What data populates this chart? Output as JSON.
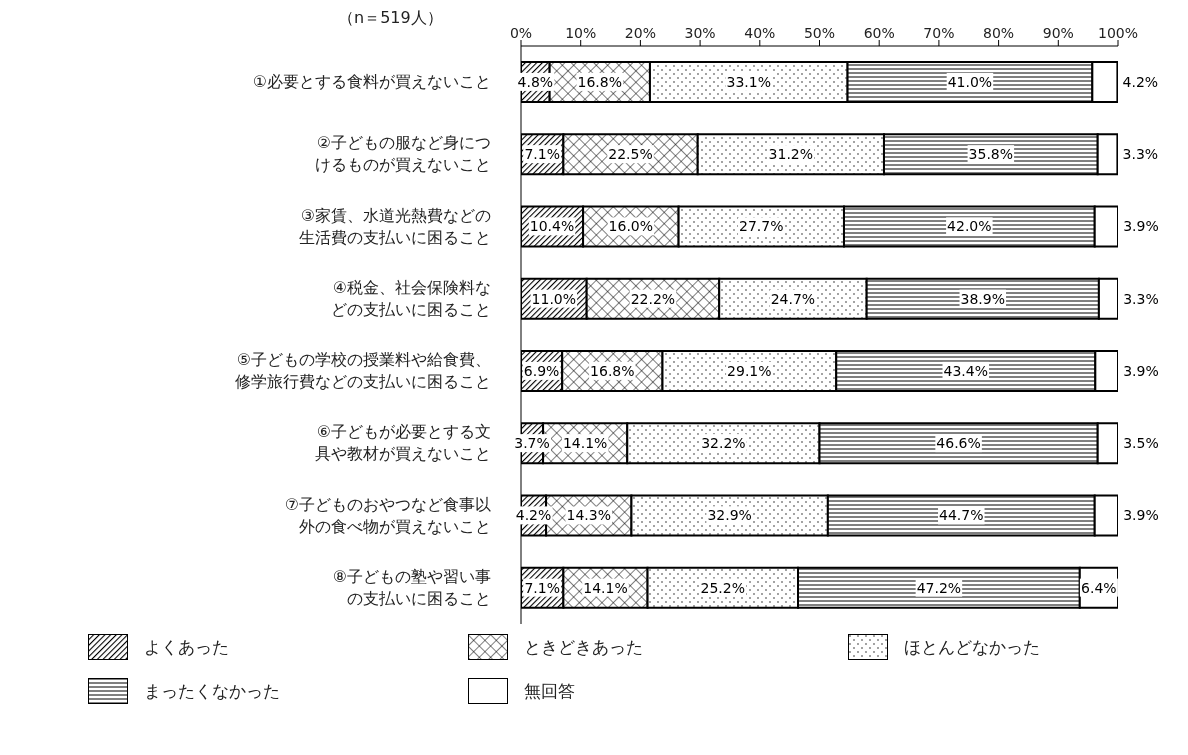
{
  "chart_data": {
    "type": "bar",
    "orientation": "horizontal",
    "stacked": true,
    "annotations": [
      "（n＝519人）"
    ],
    "categories": [
      "①必要とする食料が買えないこと",
      "②子どもの服など身につけるものが買えないこと",
      "③家賃、水道光熱費などの生活費の支払いに困ること",
      "④税金、社会保険料などの支払いに困ること",
      "⑤子どもの学校の授業料や給食費、修学旅行費などの支払いに困ること",
      "⑥子どもが必要とする文具や教材が買えないこと",
      "⑦子どものおやつなど食事以外の食べ物が買えないこと",
      "⑧子どもの塾や習い事の支払いに困ること"
    ],
    "series": [
      {
        "name": "よくあった",
        "color": "#000000",
        "values": [
          4.8,
          7.1,
          10.4,
          11.0,
          6.9,
          3.7,
          4.2,
          7.1
        ],
        "value_labels": [
          "4.8%",
          "7.1%",
          "10.4%",
          "11.0%",
          "6.9%",
          "3.7%",
          "4.2%",
          "7.1%"
        ]
      },
      {
        "name": "ときどきあった",
        "color": "#000000",
        "values": [
          16.8,
          22.5,
          16.0,
          22.2,
          16.8,
          14.1,
          14.3,
          14.1
        ],
        "value_labels": [
          "16.8%",
          "22.5%",
          "16.0%",
          "22.2%",
          "16.8%",
          "14.1%",
          "14.3%",
          "14.1%"
        ]
      },
      {
        "name": "ほとんどなかった",
        "color": "#000000",
        "values": [
          33.1,
          31.2,
          27.7,
          24.7,
          29.1,
          32.2,
          32.9,
          25.2
        ],
        "value_labels": [
          "33.1%",
          "31.2%",
          "27.7%",
          "24.7%",
          "29.1%",
          "32.2%",
          "32.9%",
          "25.2%"
        ]
      },
      {
        "name": "まったくなかった",
        "color": "#000000",
        "values": [
          41.0,
          35.8,
          42.0,
          38.9,
          43.4,
          46.6,
          44.7,
          47.2
        ],
        "value_labels": [
          "41.0%",
          "35.8%",
          "42.0%",
          "38.9%",
          "43.4%",
          "46.6%",
          "44.7%",
          "47.2%"
        ]
      },
      {
        "name": "無回答",
        "color": "#ffffff",
        "values": [
          4.2,
          3.3,
          3.9,
          3.3,
          3.9,
          3.5,
          3.9,
          6.4
        ],
        "value_labels": [
          "4.2%",
          "3.3%",
          "3.9%",
          "3.3%",
          "3.9%",
          "3.5%",
          "3.9%",
          "6.4%"
        ]
      }
    ],
    "xlim": [
      0,
      100
    ],
    "xticks": [
      {
        "value": 0,
        "label": "0%"
      },
      {
        "value": 10,
        "label": "10%"
      },
      {
        "value": 20,
        "label": "20%"
      },
      {
        "value": 30,
        "label": "30%"
      },
      {
        "value": 40,
        "label": "40%"
      },
      {
        "value": 50,
        "label": "50%"
      },
      {
        "value": 60,
        "label": "60%"
      },
      {
        "value": 70,
        "label": "70%"
      },
      {
        "value": 80,
        "label": "80%"
      },
      {
        "value": 90,
        "label": "90%"
      },
      {
        "value": 100,
        "label": "100%"
      }
    ],
    "legend": "bottom"
  }
}
